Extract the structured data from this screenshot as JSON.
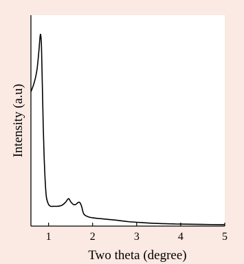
{
  "colors": {
    "page_background": "#fbe9e3",
    "plot_background": "#ffffff",
    "line": "#000000",
    "axes": "#000000"
  },
  "chart_data": {
    "type": "line",
    "title": "",
    "xlabel": "Two theta (degree)",
    "ylabel": "Intensity (a.u)",
    "xlim": [
      0.6,
      5
    ],
    "ylim": [
      0,
      1
    ],
    "y_ticks_shown": false,
    "grid": false,
    "legend": "none",
    "x_ticks": [
      1,
      2,
      3,
      4,
      5
    ],
    "x_tick_labels": [
      "1",
      "2",
      "3",
      "4",
      "5"
    ],
    "series": [
      {
        "x": [
          0.6,
          0.65,
          0.7,
          0.74,
          0.78,
          0.8,
          0.82,
          0.84,
          0.86,
          0.88,
          0.9,
          0.92,
          0.95,
          1.0,
          1.05,
          1.1,
          1.2,
          1.3,
          1.38,
          1.43,
          1.46,
          1.5,
          1.56,
          1.62,
          1.67,
          1.71,
          1.75,
          1.8,
          1.9,
          2.0,
          2.2,
          2.5,
          2.8,
          3.1,
          3.5,
          4.0,
          4.5,
          5.0
        ],
        "y": [
          0.7,
          0.73,
          0.77,
          0.82,
          0.91,
          0.97,
          1.0,
          0.93,
          0.72,
          0.52,
          0.36,
          0.25,
          0.15,
          0.11,
          0.1,
          0.1,
          0.1,
          0.105,
          0.12,
          0.135,
          0.14,
          0.125,
          0.11,
          0.11,
          0.12,
          0.12,
          0.1,
          0.06,
          0.045,
          0.04,
          0.035,
          0.028,
          0.02,
          0.015,
          0.01,
          0.007,
          0.005,
          0.004
        ]
      }
    ]
  }
}
